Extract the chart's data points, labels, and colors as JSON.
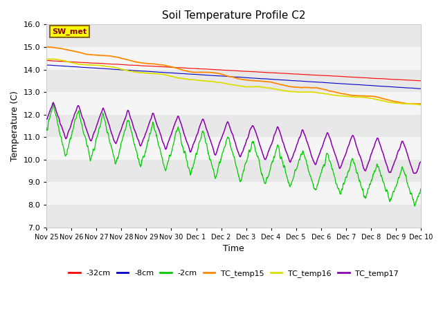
{
  "title": "Soil Temperature Profile C2",
  "xlabel": "Time",
  "ylabel": "Temperature (C)",
  "ylim": [
    7.0,
    16.0
  ],
  "yticks": [
    7.0,
    8.0,
    9.0,
    10.0,
    11.0,
    12.0,
    13.0,
    14.0,
    15.0,
    16.0
  ],
  "background_color": "#ffffff",
  "plot_bg_color": "#ffffff",
  "band_color_dark": "#e8e8e8",
  "band_color_light": "#f5f5f5",
  "sw_met_label": "SW_met",
  "sw_met_bg": "#ffff00",
  "sw_met_border": "#8B6914",
  "sw_met_text_color": "#8B0000",
  "legend_items": [
    {
      "label": "-32cm",
      "color": "#ff0000"
    },
    {
      "label": "-8cm",
      "color": "#0000cc"
    },
    {
      "label": "-2cm",
      "color": "#00cc00"
    },
    {
      "label": "TC_temp15",
      "color": "#ff8800"
    },
    {
      "label": "TC_temp16",
      "color": "#dddd00"
    },
    {
      "label": "TC_temp17",
      "color": "#8800aa"
    }
  ],
  "xtick_labels": [
    "Nov 25",
    "Nov 26",
    "Nov 27",
    "Nov 28",
    "Nov 29",
    "Nov 30",
    "Dec 1",
    "Dec 2",
    "Dec 3",
    "Dec 4",
    "Dec 5",
    "Dec 6",
    "Dec 7",
    "Dec 8",
    "Dec 9",
    "Dec 10"
  ],
  "num_points": 1440,
  "days": 15
}
